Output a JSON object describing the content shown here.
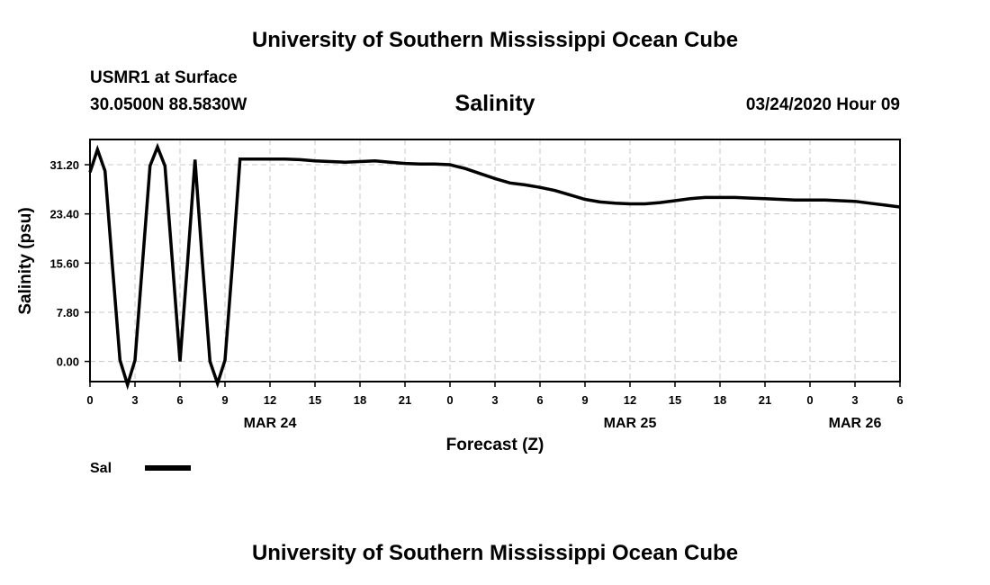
{
  "header": {
    "title_top": "University of Southern Mississippi Ocean Cube",
    "station": "USMR1 at Surface",
    "location": "30.0500N 88.5830W",
    "datetime": "03/24/2020 Hour 09",
    "title_bottom": "University of Southern Mississippi Ocean Cube"
  },
  "chart_data": {
    "type": "line",
    "title": "Salinity",
    "xlabel": "Forecast (Z)",
    "ylabel": "Salinity (psu)",
    "ylim": [
      -3.2,
      35.2
    ],
    "xlim": [
      0,
      54
    ],
    "yticks": [
      "0.00",
      "7.80",
      "15.60",
      "23.40",
      "31.20"
    ],
    "ytick_values": [
      0,
      7.8,
      15.6,
      23.4,
      31.2
    ],
    "xtick_labels": [
      "0",
      "3",
      "6",
      "9",
      "12",
      "15",
      "18",
      "21",
      "0",
      "3",
      "6",
      "9",
      "12",
      "15",
      "18",
      "21",
      "0",
      "3",
      "6"
    ],
    "date_labels": [
      {
        "label": "MAR 24",
        "at_hour": 12
      },
      {
        "label": "MAR 25",
        "at_hour": 36
      },
      {
        "label": "MAR 26",
        "at_hour": 51
      }
    ],
    "grid": true,
    "legend_position": "bottom-left",
    "series": [
      {
        "name": "Sal",
        "color": "#000000",
        "x": [
          0,
          0.5,
          1,
          1.5,
          2,
          2.5,
          3,
          3.5,
          4,
          4.5,
          5,
          5.5,
          6,
          6.5,
          7,
          7.5,
          8,
          8.5,
          9,
          9.5,
          10,
          11,
          12,
          13,
          14,
          15,
          16,
          17,
          18,
          19,
          20,
          21,
          22,
          23,
          24,
          25,
          26,
          27,
          28,
          29,
          30,
          31,
          32,
          33,
          34,
          35,
          36,
          37,
          38,
          39,
          40,
          41,
          42,
          43,
          44,
          45,
          46,
          47,
          48,
          49,
          50,
          51,
          52,
          53,
          54
        ],
        "values": [
          30.0,
          33.6,
          30.2,
          15.0,
          0.2,
          -3.7,
          0.2,
          15.5,
          31.0,
          34.0,
          31.0,
          15.5,
          0.0,
          15.5,
          32.0,
          15.5,
          0.0,
          -3.5,
          0.2,
          15.5,
          32.1,
          32.1,
          32.1,
          32.1,
          32.0,
          31.8,
          31.7,
          31.6,
          31.7,
          31.8,
          31.6,
          31.4,
          31.3,
          31.3,
          31.2,
          30.6,
          29.8,
          29.0,
          28.3,
          28.0,
          27.6,
          27.1,
          26.4,
          25.7,
          25.3,
          25.1,
          25.0,
          25.0,
          25.2,
          25.5,
          25.8,
          26.0,
          26.0,
          26.0,
          25.9,
          25.8,
          25.7,
          25.6,
          25.6,
          25.6,
          25.5,
          25.4,
          25.1,
          24.8,
          24.5
        ]
      }
    ]
  }
}
